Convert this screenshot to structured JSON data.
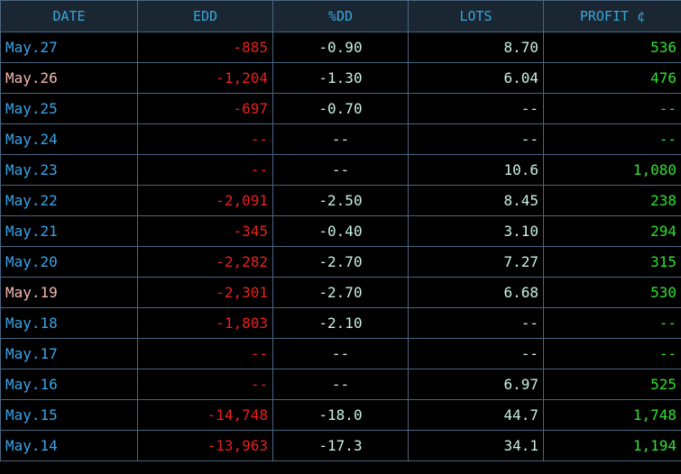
{
  "table": {
    "headers": [
      "DATE",
      "EDD",
      "%DD",
      "LOTS",
      "PROFIT ¢"
    ],
    "rows": [
      [
        "May.27",
        "-885",
        "-0.90",
        "8.70",
        "536"
      ],
      [
        "May.26",
        "-1,204",
        "-1.30",
        "6.04",
        "476"
      ],
      [
        "May.25",
        "-697",
        "-0.70",
        "--",
        "--"
      ],
      [
        "May.24",
        "--",
        "--",
        "--",
        "--"
      ],
      [
        "May.23",
        "--",
        "--",
        "10.6",
        "1,080"
      ],
      [
        "May.22",
        "-2,091",
        "-2.50",
        "8.45",
        "238"
      ],
      [
        "May.21",
        "-345",
        "-0.40",
        "3.10",
        "294"
      ],
      [
        "May.20",
        "-2,282",
        "-2.70",
        "7.27",
        "315"
      ],
      [
        "May.19",
        "-2,301",
        "-2.70",
        "6.68",
        "530"
      ],
      [
        "May.18",
        "-1,803",
        "-2.10",
        "--",
        "--"
      ],
      [
        "May.17",
        "--",
        "--",
        "--",
        "--"
      ],
      [
        "May.16",
        "--",
        "--",
        "6.97",
        "525"
      ],
      [
        "May.15",
        "-14,748",
        "-18.0",
        "44.7",
        "1,748"
      ],
      [
        "May.14",
        "-13,963",
        "-17.3",
        "34.1",
        "1,194"
      ]
    ]
  }
}
